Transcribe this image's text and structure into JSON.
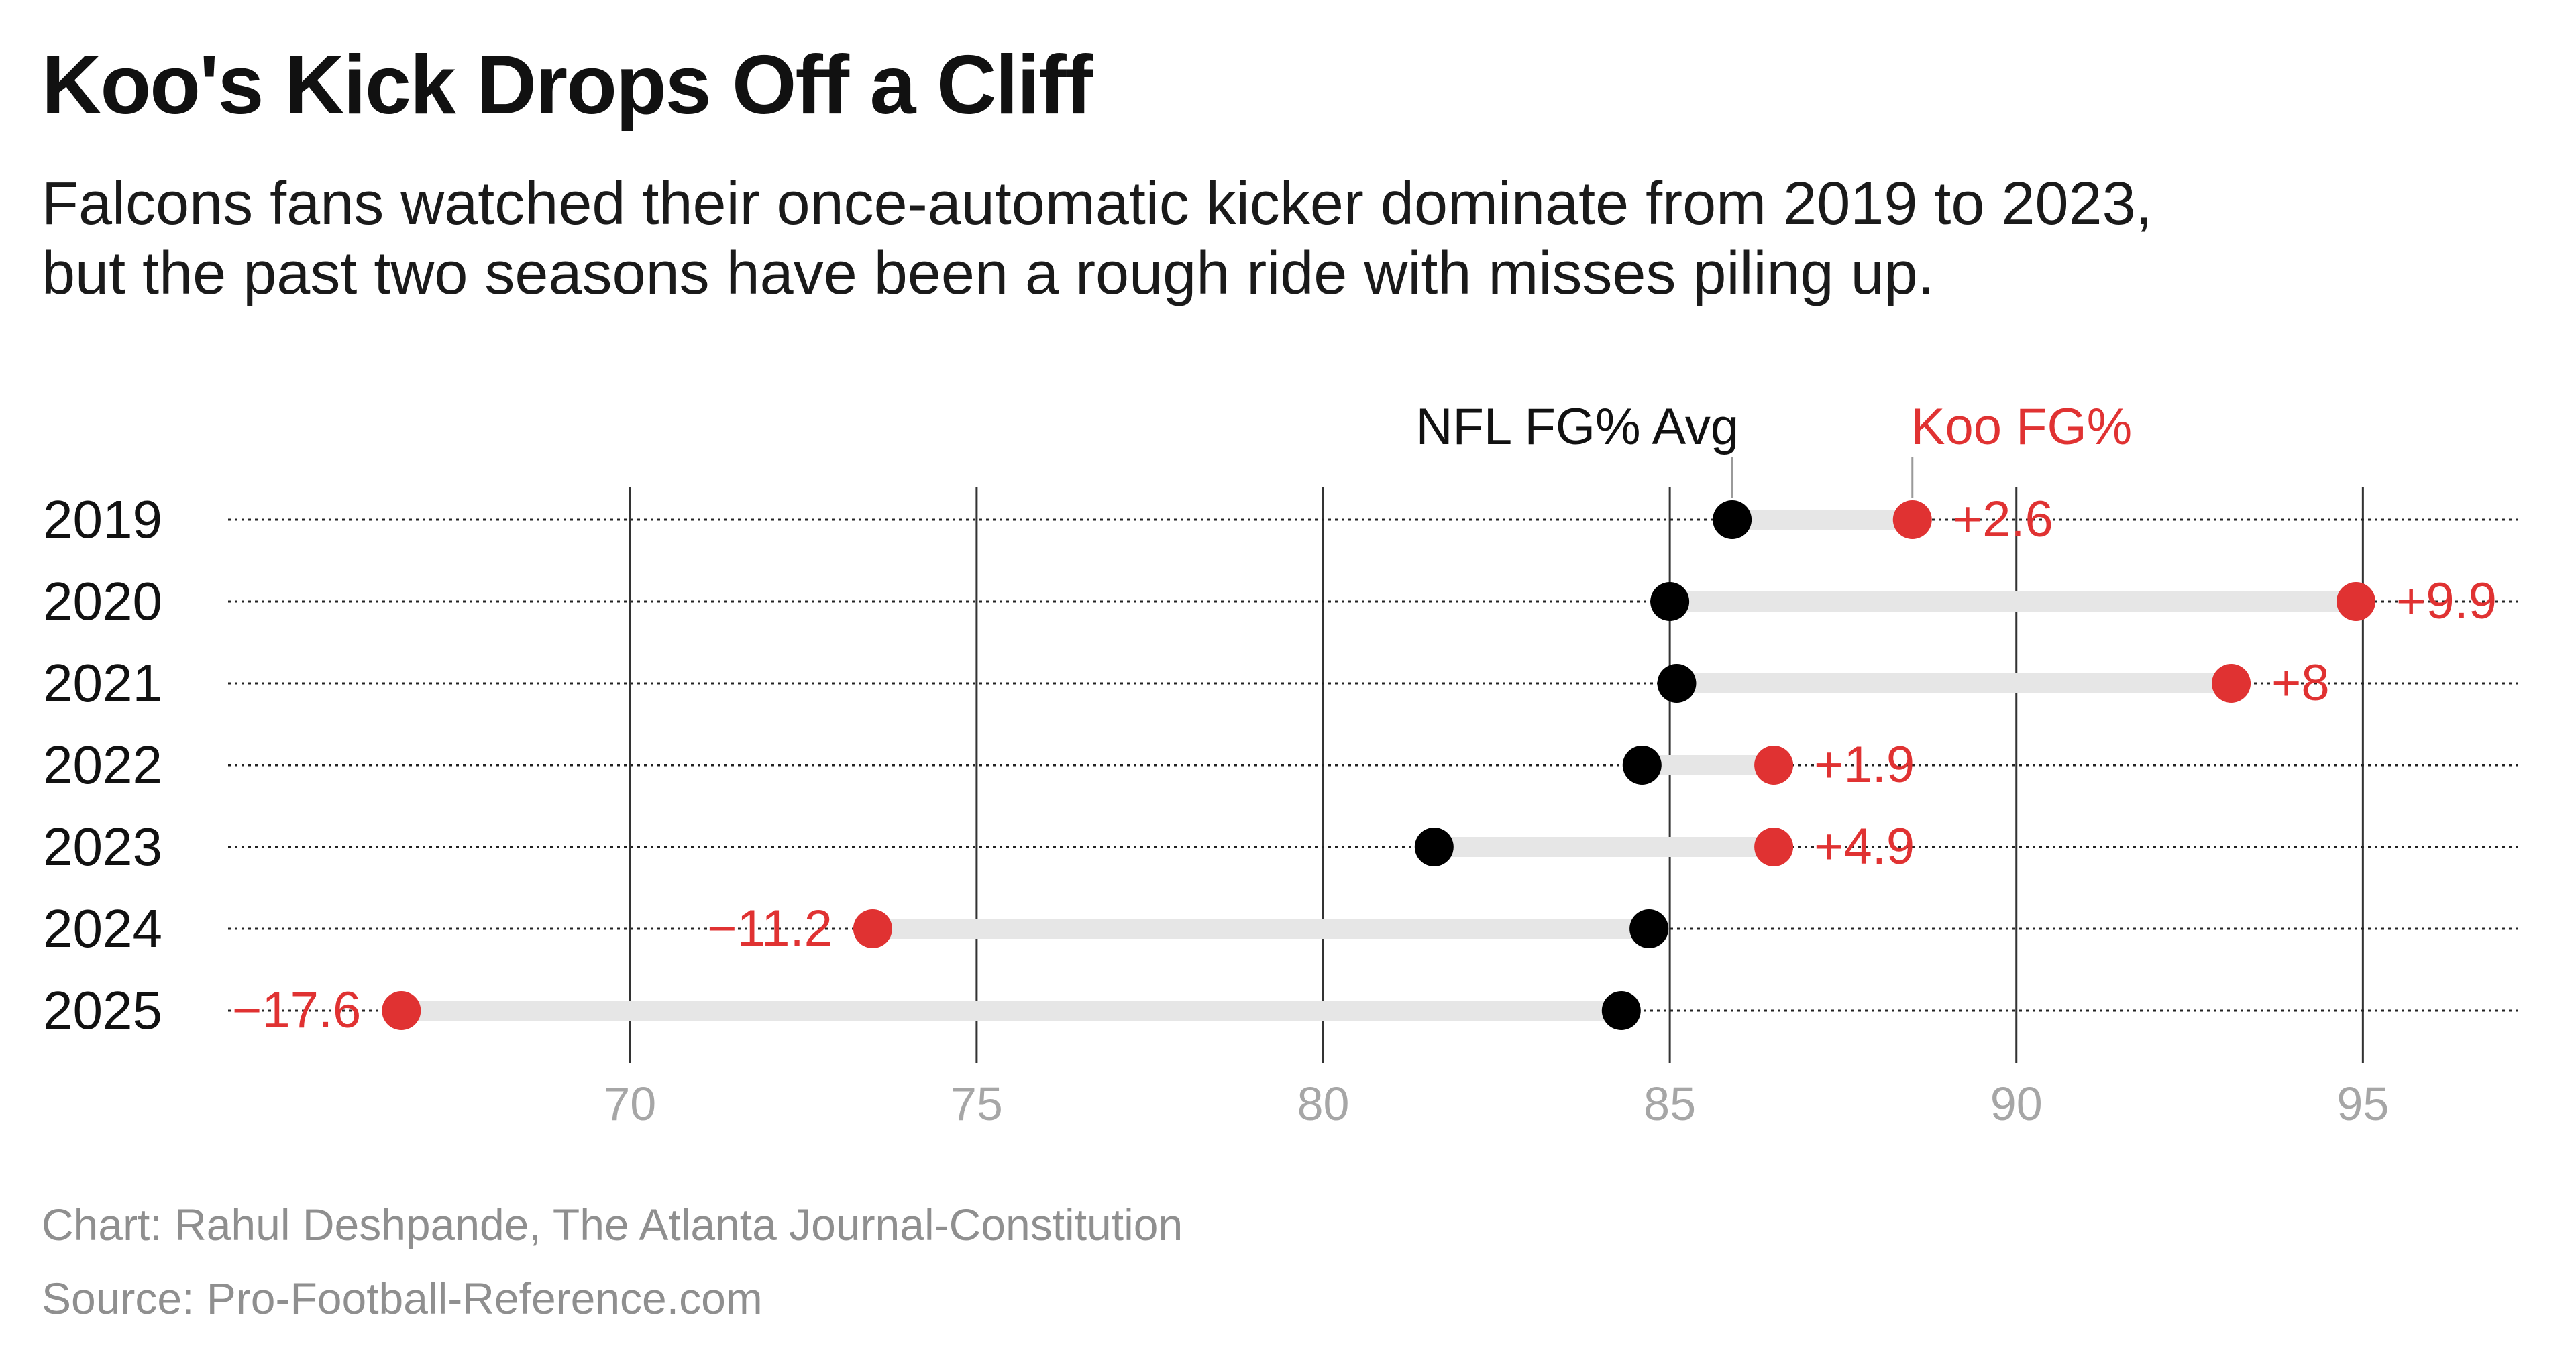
{
  "title": "Koo's Kick Drops Off a Cliff",
  "subtitle": {
    "line1": "Falcons fans watched their once-automatic kicker dominate from 2019 to 2023,",
    "line2": "but the past two seasons have been a rough ride with misses piling up."
  },
  "footer": {
    "credit": "Chart: Rahul Deshpande, The Atlanta Journal-Constitution",
    "source": "Source: Pro-Football-Reference.com"
  },
  "colors": {
    "koo": "#e03232",
    "nfl": "#000000",
    "connector": "#e6e6e6",
    "grid": "#333333",
    "tick": "#a6a6a6"
  },
  "chart_data": {
    "type": "dumbbell",
    "title": "Koo's Kick Drops Off a Cliff",
    "categories": [
      "2019",
      "2020",
      "2021",
      "2022",
      "2023",
      "2024",
      "2025"
    ],
    "series": [
      {
        "name": "NFL FG% Avg",
        "values": [
          85.9,
          85.0,
          85.1,
          84.6,
          81.6,
          84.7,
          84.3
        ]
      },
      {
        "name": "Koo FG%",
        "values": [
          88.5,
          94.9,
          93.1,
          86.5,
          86.5,
          73.5,
          66.7
        ]
      }
    ],
    "diff_labels": [
      "+2.6",
      "+9.9",
      "+8",
      "+1.9",
      "+4.9",
      "−11.2",
      "−17.6"
    ],
    "xticks": [
      70,
      75,
      80,
      85,
      90,
      95
    ],
    "xlim": [
      64.2,
      97.3
    ],
    "legend": {
      "nfl": "NFL FG% Avg",
      "koo": "Koo FG%"
    },
    "annotation_row": "2019"
  }
}
